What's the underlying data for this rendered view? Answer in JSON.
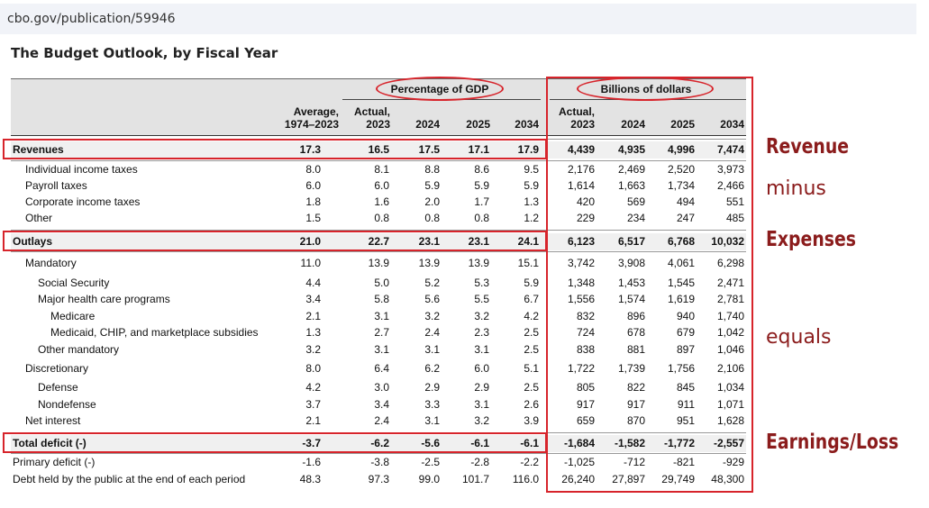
{
  "browser": {
    "url": "cbo.gov/publication/59946"
  },
  "table": {
    "title": "The Budget Outlook, by Fiscal Year",
    "group_headers": {
      "gdp": "Percentage of GDP",
      "dollars": "Billions of dollars"
    },
    "columns": {
      "avg": [
        "Average,",
        "1974–2023"
      ],
      "gdp": [
        [
          "Actual,",
          "2023"
        ],
        [
          "",
          "2024"
        ],
        [
          "",
          "2025"
        ],
        [
          "",
          "2034"
        ]
      ],
      "dollars": [
        [
          "Actual,",
          "2023"
        ],
        [
          "",
          "2024"
        ],
        [
          "",
          "2025"
        ],
        [
          "",
          "2034"
        ]
      ]
    },
    "rows": [
      {
        "label": "Revenues",
        "values": [
          "17.3",
          "16.5",
          "17.5",
          "17.1",
          "17.9",
          "4,439",
          "4,935",
          "4,996",
          "7,474"
        ]
      },
      {
        "label": "Individual income taxes",
        "values": [
          "8.0",
          "8.1",
          "8.8",
          "8.6",
          "9.5",
          "2,176",
          "2,469",
          "2,520",
          "3,973"
        ]
      },
      {
        "label": "Payroll taxes",
        "values": [
          "6.0",
          "6.0",
          "5.9",
          "5.9",
          "5.9",
          "1,614",
          "1,663",
          "1,734",
          "2,466"
        ]
      },
      {
        "label": "Corporate income taxes",
        "values": [
          "1.8",
          "1.6",
          "2.0",
          "1.7",
          "1.3",
          "420",
          "569",
          "494",
          "551"
        ]
      },
      {
        "label": "Other",
        "values": [
          "1.5",
          "0.8",
          "0.8",
          "0.8",
          "1.2",
          "229",
          "234",
          "247",
          "485"
        ]
      },
      {
        "label": "Outlays",
        "values": [
          "21.0",
          "22.7",
          "23.1",
          "23.1",
          "24.1",
          "6,123",
          "6,517",
          "6,768",
          "10,032"
        ]
      },
      {
        "label": "Mandatory",
        "values": [
          "11.0",
          "13.9",
          "13.9",
          "13.9",
          "15.1",
          "3,742",
          "3,908",
          "4,061",
          "6,298"
        ]
      },
      {
        "label": "Social Security",
        "values": [
          "4.4",
          "5.0",
          "5.2",
          "5.3",
          "5.9",
          "1,348",
          "1,453",
          "1,545",
          "2,471"
        ]
      },
      {
        "label": "Major health care programs",
        "values": [
          "3.4",
          "5.8",
          "5.6",
          "5.5",
          "6.7",
          "1,556",
          "1,574",
          "1,619",
          "2,781"
        ]
      },
      {
        "label": "Medicare",
        "values": [
          "2.1",
          "3.1",
          "3.2",
          "3.2",
          "4.2",
          "832",
          "896",
          "940",
          "1,740"
        ]
      },
      {
        "label": "Medicaid, CHIP, and marketplace subsidies",
        "values": [
          "1.3",
          "2.7",
          "2.4",
          "2.3",
          "2.5",
          "724",
          "678",
          "679",
          "1,042"
        ]
      },
      {
        "label": "Other mandatory",
        "values": [
          "3.2",
          "3.1",
          "3.1",
          "3.1",
          "2.5",
          "838",
          "881",
          "897",
          "1,046"
        ]
      },
      {
        "label": "Discretionary",
        "values": [
          "8.0",
          "6.4",
          "6.2",
          "6.0",
          "5.1",
          "1,722",
          "1,739",
          "1,756",
          "2,106"
        ]
      },
      {
        "label": "Defense",
        "values": [
          "4.2",
          "3.0",
          "2.9",
          "2.9",
          "2.5",
          "805",
          "822",
          "845",
          "1,034"
        ]
      },
      {
        "label": "Nondefense",
        "values": [
          "3.7",
          "3.4",
          "3.3",
          "3.1",
          "2.6",
          "917",
          "917",
          "911",
          "1,071"
        ]
      },
      {
        "label": "Net interest",
        "values": [
          "2.1",
          "2.4",
          "3.1",
          "3.2",
          "3.9",
          "659",
          "870",
          "951",
          "1,628"
        ]
      },
      {
        "label": "Total deficit (-)",
        "values": [
          "-3.7",
          "-6.2",
          "-5.6",
          "-6.1",
          "-6.1",
          "-1,684",
          "-1,582",
          "-1,772",
          "-2,557"
        ]
      },
      {
        "label": "Primary deficit (-)",
        "values": [
          "-1.6",
          "-3.8",
          "-2.5",
          "-2.8",
          "-2.2",
          "-1,025",
          "-712",
          "-821",
          "-929"
        ]
      },
      {
        "label": "Debt held by the public at the end of each period",
        "values": [
          "48.3",
          "97.3",
          "99.0",
          "101.7",
          "116.0",
          "26,240",
          "27,897",
          "29,749",
          "48,300"
        ]
      }
    ]
  },
  "annotations": {
    "revenue": "Revenue",
    "minus": "minus",
    "expenses": "Expenses",
    "equals": "equals",
    "earnings": "Earnings/Loss"
  },
  "colors": {
    "annotation_red": "#d7242b",
    "annotation_text": "#8b1c1c",
    "header_bg": "#e3e3e3",
    "url_bar": "#f1f3f8"
  }
}
